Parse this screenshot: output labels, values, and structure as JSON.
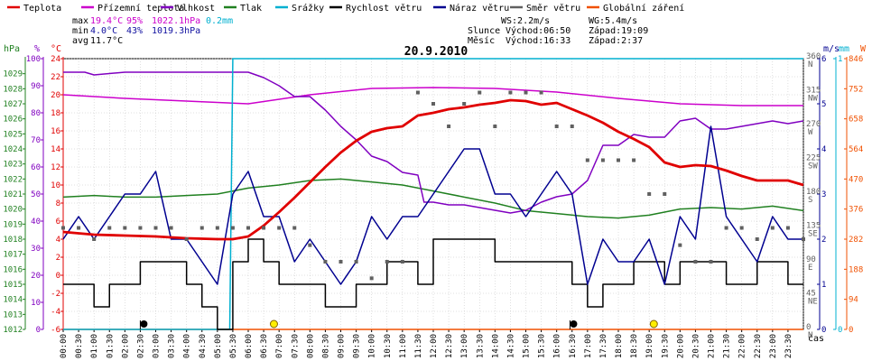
{
  "legend": [
    {
      "label": "Teplota",
      "color": "#e00000"
    },
    {
      "label": "Přízemní teplota",
      "color": "#cc00cc"
    },
    {
      "label": "Vlhkost",
      "color": "#8000c0"
    },
    {
      "label": "Tlak",
      "color": "#208020"
    },
    {
      "label": "Srážky",
      "color": "#00b0d0"
    },
    {
      "label": "Rychlost větru",
      "color": "#000000"
    },
    {
      "label": "Náraz větru",
      "color": "#000090"
    },
    {
      "label": "Směr větru",
      "color": "#606060"
    },
    {
      "label": "Globální záření",
      "color": "#f05000"
    }
  ],
  "stats": {
    "max": {
      "label": "max",
      "temp": "19.4°C",
      "hum": "95%",
      "press": "1022.1hPa",
      "rain": "0.2mm"
    },
    "min": {
      "label": "min",
      "temp": "4.0°C",
      "hum": "43%",
      "press": "1019.3hPa"
    },
    "avg": {
      "label": "avg",
      "temp": "11.7°C"
    }
  },
  "wind_info": {
    "ws": "WS:2.2m/s",
    "wg": "WG:5.4m/s"
  },
  "sun": {
    "label": "Slunce",
    "rise": "Východ:06:50",
    "set": "Západ:19:09"
  },
  "moon": {
    "label": "Měsíc",
    "rise": "Východ:16:33",
    "set": "Západ:2:37"
  },
  "date_title": "20.9.2010",
  "axis_units": {
    "hpa": "hPa",
    "pct": "%",
    "degc": "°C",
    "ms": "m/s",
    "mm": "mm",
    "w": "W",
    "cas": "čas"
  },
  "colors": {
    "grid": "#c0c0c0",
    "frame": "#000000"
  },
  "chart_data": {
    "type": "line",
    "x_ticks": [
      "00:00",
      "00:30",
      "01:00",
      "01:30",
      "02:00",
      "02:30",
      "03:00",
      "03:30",
      "04:00",
      "04:30",
      "05:00",
      "05:30",
      "06:00",
      "06:30",
      "07:00",
      "07:30",
      "08:00",
      "08:30",
      "09:00",
      "09:30",
      "10:00",
      "10:30",
      "11:00",
      "11:30",
      "12:00",
      "12:30",
      "13:00",
      "13:30",
      "14:00",
      "14:30",
      "15:00",
      "15:30",
      "16:00",
      "16:30",
      "17:00",
      "17:30",
      "18:00",
      "18:30",
      "19:00",
      "19:30",
      "20:00",
      "20:30",
      "21:00",
      "21:30",
      "22:00",
      "22:30",
      "23:00",
      "23:30"
    ],
    "y_axes": {
      "hpa": {
        "ticks": [
          1012,
          1013,
          1014,
          1015,
          1016,
          1017,
          1018,
          1019,
          1020,
          1021,
          1022,
          1023,
          1024,
          1025,
          1026,
          1027,
          1028,
          1029
        ],
        "range": [
          1012,
          1030
        ]
      },
      "pct": {
        "ticks": [
          0,
          10,
          20,
          30,
          40,
          50,
          60,
          70,
          80,
          90,
          100
        ],
        "range": [
          0,
          100
        ]
      },
      "degc": {
        "ticks": [
          -6,
          -4,
          -2,
          0,
          2,
          4,
          6,
          8,
          10,
          12,
          14,
          16,
          18,
          20,
          22,
          24
        ],
        "range": [
          -6,
          24
        ]
      },
      "ms": {
        "ticks": [
          0,
          1,
          2,
          3,
          4,
          5,
          6
        ],
        "range": [
          0,
          6
        ]
      },
      "mm": {
        "ticks": [
          0,
          1
        ],
        "range": [
          0,
          1
        ]
      },
      "w": {
        "ticks": [
          0,
          94,
          188,
          282,
          376,
          470,
          564,
          658,
          752,
          846
        ],
        "range": [
          0,
          846
        ]
      },
      "dir": {
        "ticks": [
          {
            "v": 0,
            "d": "0",
            "n": "N"
          },
          {
            "v": 45,
            "d": "45",
            "n": "NE"
          },
          {
            "v": 90,
            "d": "90",
            "n": "E"
          },
          {
            "v": 135,
            "d": "135",
            "n": "SE"
          },
          {
            "v": 180,
            "d": "180",
            "n": "S"
          },
          {
            "v": 225,
            "d": "225",
            "n": "SW"
          },
          {
            "v": 270,
            "d": "270",
            "n": "W"
          },
          {
            "v": 315,
            "d": "315",
            "n": "NW"
          },
          {
            "v": 360,
            "d": "360",
            "n": "N"
          }
        ],
        "range": [
          0,
          360
        ]
      }
    },
    "series": {
      "temperature": {
        "name": "Teplota",
        "x": [
          0,
          1,
          2,
          3,
          4,
          5,
          5.5,
          6,
          6.5,
          7,
          7.5,
          8,
          8.5,
          9,
          9.5,
          10,
          10.5,
          11,
          11.5,
          12,
          12.5,
          13,
          13.5,
          14,
          14.5,
          15,
          15.5,
          16,
          16.5,
          17,
          17.5,
          18,
          18.5,
          19,
          19.5,
          20,
          20.5,
          21,
          21.5,
          22,
          22.5,
          23,
          23.5,
          24
        ],
        "y": [
          4.8,
          4.5,
          4.4,
          4.3,
          4.1,
          4.0,
          4.0,
          4.3,
          5.5,
          7.0,
          8.6,
          10.3,
          12.0,
          13.6,
          14.9,
          15.9,
          16.3,
          16.5,
          17.7,
          18.0,
          18.4,
          18.6,
          18.9,
          19.1,
          19.4,
          19.3,
          18.9,
          19.1,
          18.4,
          17.7,
          16.9,
          15.9,
          15.1,
          14.2,
          12.5,
          12.0,
          12.2,
          12.1,
          11.6,
          11.0,
          10.5,
          10.5,
          10.5,
          10.0
        ]
      },
      "ground_temperature": {
        "name": "Přízemní teplota",
        "x": [
          0,
          2,
          4,
          6,
          8,
          10,
          12,
          14,
          16,
          18,
          20,
          22,
          24
        ],
        "y": [
          20.0,
          19.6,
          19.3,
          19.0,
          20.0,
          20.7,
          20.8,
          20.7,
          20.3,
          19.6,
          19.0,
          18.8,
          18.8
        ]
      },
      "humidity": {
        "name": "Vlhkost",
        "x": [
          0,
          0.7,
          1,
          2,
          3,
          4,
          5,
          5.5,
          6,
          6.5,
          7,
          7.5,
          8,
          8.5,
          9,
          9.5,
          10,
          10.5,
          11,
          11.5,
          11.7,
          12,
          12.5,
          13,
          13.5,
          14,
          14.5,
          15,
          15.5,
          16,
          16.5,
          17,
          17.5,
          18,
          18.5,
          19,
          19.5,
          20,
          20.5,
          21,
          21.5,
          22,
          22.5,
          23,
          23.5,
          24
        ],
        "y": [
          95,
          95,
          94,
          95,
          95,
          95,
          95,
          95,
          95,
          93,
          90,
          86,
          86,
          81,
          75,
          70,
          64,
          62,
          58,
          57,
          47,
          47,
          46,
          46,
          45,
          44,
          43,
          44,
          47,
          49,
          50,
          55,
          68,
          68,
          72,
          71,
          71,
          77,
          78,
          74,
          74,
          75,
          76,
          77,
          76,
          77
        ]
      },
      "pressure": {
        "name": "Tlak",
        "x": [
          0,
          1,
          2,
          3,
          4,
          5,
          6,
          7,
          8,
          9,
          10,
          11,
          12,
          13,
          14,
          15,
          16,
          17,
          18,
          19,
          20,
          21,
          22,
          23,
          24
        ],
        "y": [
          1020.8,
          1020.9,
          1020.8,
          1020.8,
          1020.9,
          1021.0,
          1021.4,
          1021.6,
          1021.9,
          1022.0,
          1021.8,
          1021.6,
          1021.2,
          1020.8,
          1020.4,
          1019.9,
          1019.7,
          1019.5,
          1019.4,
          1019.6,
          1020.0,
          1020.1,
          1020.0,
          1020.2,
          1019.9
        ]
      },
      "rain": {
        "name": "Srážky",
        "x": [
          0,
          5,
          5.4,
          5.5,
          24
        ],
        "y": [
          0,
          0,
          0,
          1,
          1
        ]
      },
      "wind_speed": {
        "name": "Rychlost větru",
        "x": [
          0,
          0.5,
          1,
          1.5,
          2,
          2.5,
          3,
          3.5,
          4,
          4.5,
          5,
          5.5,
          6,
          6.5,
          7,
          7.5,
          8,
          8.5,
          9,
          9.5,
          10,
          10.5,
          11,
          11.5,
          12,
          12.5,
          13,
          13.5,
          14,
          14.5,
          15,
          15.5,
          16,
          16.5,
          17,
          17.5,
          18,
          18.5,
          19,
          19.5,
          20,
          20.5,
          21,
          21.5,
          22,
          22.5,
          23,
          23.5,
          24
        ],
        "y": [
          1,
          1,
          0.5,
          1,
          1,
          1.5,
          1.5,
          1.5,
          1,
          0.5,
          0,
          1.5,
          2,
          1.5,
          1,
          1,
          1,
          0.5,
          0.5,
          1,
          1,
          1.5,
          1.5,
          1,
          2,
          2,
          2,
          2,
          1.5,
          1.5,
          1.5,
          1.5,
          1.5,
          1,
          0.5,
          1,
          1,
          1.5,
          1.5,
          1,
          1.5,
          1.5,
          1.5,
          1,
          1,
          1.5,
          1.5,
          1,
          1
        ]
      },
      "wind_gust": {
        "name": "Náraz větru",
        "x": [
          0,
          0.5,
          1,
          1.5,
          2,
          2.5,
          3,
          3.5,
          4,
          4.5,
          5,
          5.5,
          6,
          6.5,
          7,
          7.5,
          8,
          8.5,
          9,
          9.5,
          10,
          10.5,
          11,
          11.5,
          12,
          12.5,
          13,
          13.5,
          14,
          14.5,
          15,
          15.5,
          16,
          16.5,
          17,
          17.5,
          18,
          18.5,
          19,
          19.5,
          20,
          20.5,
          21,
          21.5,
          22,
          22.5,
          23,
          23.5,
          24
        ],
        "y": [
          2,
          2.5,
          2,
          2.5,
          3,
          3,
          3.5,
          2,
          2,
          1.5,
          1,
          3,
          3.5,
          2.5,
          2.5,
          1.5,
          2,
          1.5,
          1,
          1.5,
          2.5,
          2,
          2.5,
          2.5,
          3,
          3.5,
          4,
          4,
          3,
          3,
          2.5,
          3,
          3.5,
          3,
          1,
          2,
          1.5,
          1.5,
          2,
          1,
          2.5,
          2,
          4.5,
          2.5,
          2,
          1.5,
          2.5,
          2,
          2
        ]
      },
      "wind_direction": {
        "name": "Směr větru",
        "x": [
          0,
          0.5,
          1,
          1.5,
          2,
          2.5,
          3,
          3.5,
          4,
          4.5,
          5,
          5.5,
          6,
          6.5,
          7,
          7.5,
          8,
          8.5,
          9,
          9.5,
          10,
          10.5,
          11,
          11.5,
          12,
          12.5,
          13,
          13.5,
          14,
          14.5,
          15,
          15.5,
          16,
          16.5,
          17,
          17.5,
          18,
          18.5,
          19,
          19.5,
          20,
          20.5,
          21,
          21.5,
          22,
          22.5,
          23,
          23.5,
          24
        ],
        "y": [
          135,
          135,
          120,
          135,
          135,
          135,
          135,
          135,
          120,
          135,
          135,
          135,
          135,
          135,
          135,
          135,
          112,
          90,
          90,
          90,
          68,
          90,
          90,
          315,
          300,
          270,
          300,
          315,
          270,
          315,
          315,
          315,
          270,
          270,
          225,
          225,
          225,
          225,
          180,
          180,
          112,
          90,
          90,
          135,
          135,
          120,
          135,
          135,
          120
        ]
      },
      "radiation": {
        "name": "Globální záření",
        "x": [
          0,
          24
        ],
        "y": [
          0,
          0
        ]
      }
    },
    "markers": [
      {
        "type": "moon_set",
        "time": "2:37",
        "x": 2.617
      },
      {
        "type": "sunrise",
        "time": "06:50",
        "x": 6.833
      },
      {
        "type": "moon_rise",
        "time": "16:33",
        "x": 16.55
      },
      {
        "type": "sunset",
        "time": "19:09",
        "x": 19.15
      }
    ]
  }
}
